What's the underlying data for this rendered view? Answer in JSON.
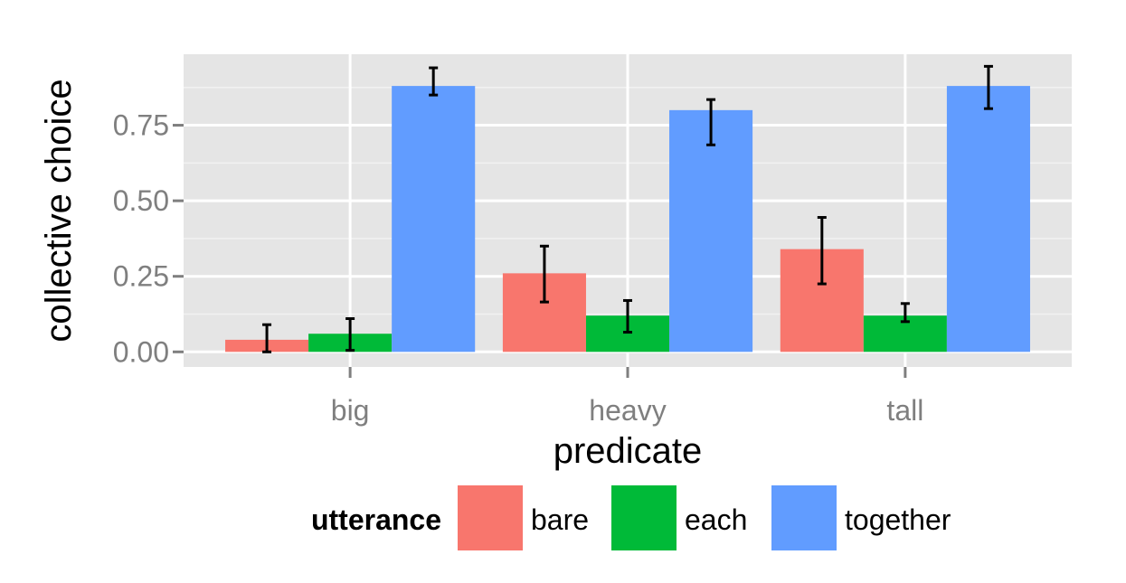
{
  "chart_data": {
    "type": "bar",
    "xlabel": "predicate",
    "ylabel": "collective choice",
    "categories": [
      "big",
      "heavy",
      "tall"
    ],
    "ylim": [
      -0.05,
      0.985
    ],
    "yticks": [
      0.0,
      0.25,
      0.5,
      0.75
    ],
    "ytick_labels": [
      "0.00",
      "0.25",
      "0.50",
      "0.75"
    ],
    "grid": true,
    "legend": {
      "title": "utterance",
      "position": "bottom"
    },
    "series": [
      {
        "name": "bare",
        "color": "#F8766D",
        "values": [
          0.04,
          0.26,
          0.34
        ],
        "error_low": [
          0.0,
          0.165,
          0.225
        ],
        "error_high": [
          0.09,
          0.35,
          0.445
        ]
      },
      {
        "name": "each",
        "color": "#00BA38",
        "values": [
          0.06,
          0.12,
          0.12
        ],
        "error_low": [
          0.005,
          0.065,
          0.1
        ],
        "error_high": [
          0.11,
          0.17,
          0.16
        ]
      },
      {
        "name": "together",
        "color": "#619CFF",
        "values": [
          0.88,
          0.8,
          0.88
        ],
        "error_low": [
          0.85,
          0.685,
          0.805
        ],
        "error_high": [
          0.94,
          0.835,
          0.945
        ]
      }
    ]
  }
}
